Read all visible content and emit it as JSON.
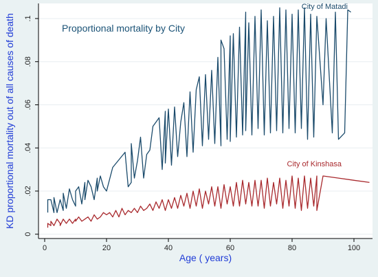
{
  "chart_data": {
    "type": "line",
    "title": "Proportional mortality by City",
    "xlabel": "Age ( years)",
    "ylabel": "KD proportional mortality out of all causes of death",
    "xlim": [
      -2,
      106
    ],
    "ylim": [
      -0.002,
      0.107
    ],
    "xticks": [
      0,
      20,
      40,
      60,
      80,
      100
    ],
    "yticks": [
      0,
      0.02,
      0.04,
      0.06,
      0.08,
      0.1
    ],
    "ytick_labels": [
      "0",
      ".02",
      ".04",
      ".06",
      ".08",
      ".1"
    ],
    "grid": "horizontal",
    "legend": "none",
    "background": "#eaf2f3",
    "plot_background": "#ffffff",
    "grid_color": "#e8edf0",
    "series": [
      {
        "name": "City of Matadi",
        "color": "#1a4a6b",
        "x": [
          1,
          1,
          2,
          3,
          3,
          4,
          5,
          6,
          6,
          7,
          8,
          9,
          10,
          10,
          11,
          12,
          13,
          13,
          14,
          15,
          16,
          17,
          17,
          18,
          19,
          20,
          22,
          26,
          27,
          28,
          28,
          29,
          30,
          31,
          32,
          33,
          34,
          35,
          36,
          37,
          38,
          39,
          39,
          40,
          41,
          42,
          43,
          44,
          45,
          46,
          47,
          48,
          49,
          50,
          51,
          52,
          53,
          54,
          55,
          56,
          57,
          57,
          58,
          59,
          60,
          60,
          61,
          62,
          63,
          64,
          65,
          65,
          66,
          67,
          68,
          69,
          70,
          71,
          72,
          73,
          74,
          75,
          76,
          77,
          78,
          79,
          80,
          81,
          82,
          83,
          84,
          85,
          86,
          87,
          88,
          90,
          91,
          93,
          94,
          95,
          97,
          98,
          99
        ],
        "y": [
          0.01,
          0.016,
          0.016,
          0.01,
          0.017,
          0.01,
          0.016,
          0.011,
          0.019,
          0.012,
          0.021,
          0.016,
          0.013,
          0.02,
          0.022,
          0.014,
          0.024,
          0.016,
          0.025,
          0.022,
          0.016,
          0.026,
          0.02,
          0.027,
          0.022,
          0.02,
          0.031,
          0.038,
          0.022,
          0.024,
          0.042,
          0.026,
          0.034,
          0.045,
          0.026,
          0.037,
          0.039,
          0.05,
          0.052,
          0.054,
          0.03,
          0.057,
          0.033,
          0.058,
          0.032,
          0.059,
          0.036,
          0.052,
          0.061,
          0.036,
          0.066,
          0.038,
          0.067,
          0.073,
          0.041,
          0.074,
          0.044,
          0.076,
          0.042,
          0.082,
          0.041,
          0.09,
          0.086,
          0.044,
          0.092,
          0.043,
          0.093,
          0.045,
          0.096,
          0.046,
          0.103,
          0.048,
          0.098,
          0.046,
          0.101,
          0.049,
          0.104,
          0.046,
          0.099,
          0.047,
          0.101,
          0.048,
          0.105,
          0.047,
          0.104,
          0.049,
          0.102,
          0.047,
          0.104,
          0.049,
          0.105,
          0.044,
          0.102,
          0.045,
          0.101,
          0.06,
          0.1,
          0.047,
          0.103,
          0.044,
          0.047,
          0.104,
          0.103
        ]
      },
      {
        "name": "City of Kinshasa",
        "color": "#a8282c",
        "x": [
          1,
          1,
          2,
          2,
          3,
          4,
          5,
          5,
          6,
          7,
          8,
          9,
          10,
          10,
          11,
          12,
          13,
          14,
          15,
          16,
          17,
          18,
          19,
          20,
          21,
          22,
          23,
          24,
          25,
          26,
          27,
          28,
          29,
          30,
          31,
          32,
          33,
          34,
          35,
          36,
          37,
          38,
          39,
          40,
          41,
          42,
          43,
          44,
          45,
          46,
          47,
          48,
          49,
          50,
          51,
          52,
          53,
          54,
          55,
          56,
          57,
          58,
          59,
          60,
          61,
          62,
          63,
          64,
          65,
          66,
          67,
          68,
          69,
          70,
          71,
          72,
          73,
          74,
          75,
          76,
          77,
          78,
          79,
          80,
          81,
          82,
          83,
          84,
          85,
          86,
          87,
          88,
          88,
          90,
          95,
          100,
          105
        ],
        "y": [
          0.003,
          0.005,
          0.004,
          0.006,
          0.004,
          0.007,
          0.005,
          0.004,
          0.007,
          0.005,
          0.007,
          0.005,
          0.007,
          0.006,
          0.008,
          0.006,
          0.007,
          0.008,
          0.006,
          0.009,
          0.007,
          0.008,
          0.01,
          0.009,
          0.01,
          0.008,
          0.011,
          0.008,
          0.012,
          0.009,
          0.011,
          0.01,
          0.012,
          0.01,
          0.013,
          0.011,
          0.012,
          0.014,
          0.011,
          0.015,
          0.012,
          0.016,
          0.011,
          0.016,
          0.012,
          0.017,
          0.012,
          0.018,
          0.013,
          0.019,
          0.012,
          0.02,
          0.013,
          0.021,
          0.012,
          0.02,
          0.014,
          0.022,
          0.013,
          0.022,
          0.012,
          0.023,
          0.014,
          0.022,
          0.013,
          0.024,
          0.013,
          0.025,
          0.014,
          0.024,
          0.013,
          0.025,
          0.013,
          0.025,
          0.012,
          0.026,
          0.013,
          0.024,
          0.014,
          0.026,
          0.012,
          0.025,
          0.013,
          0.027,
          0.012,
          0.026,
          0.011,
          0.027,
          0.012,
          0.026,
          0.013,
          0.027,
          0.011,
          0.027,
          0.026,
          0.025,
          0.024
        ]
      }
    ],
    "annotations": [
      {
        "text": "City of Matadi",
        "x": 98,
        "y": 0.1045,
        "color": "#1a4a6b"
      },
      {
        "text": "City of Kinshasa",
        "x": 96,
        "y": 0.0315,
        "color": "#a8282c"
      }
    ]
  }
}
